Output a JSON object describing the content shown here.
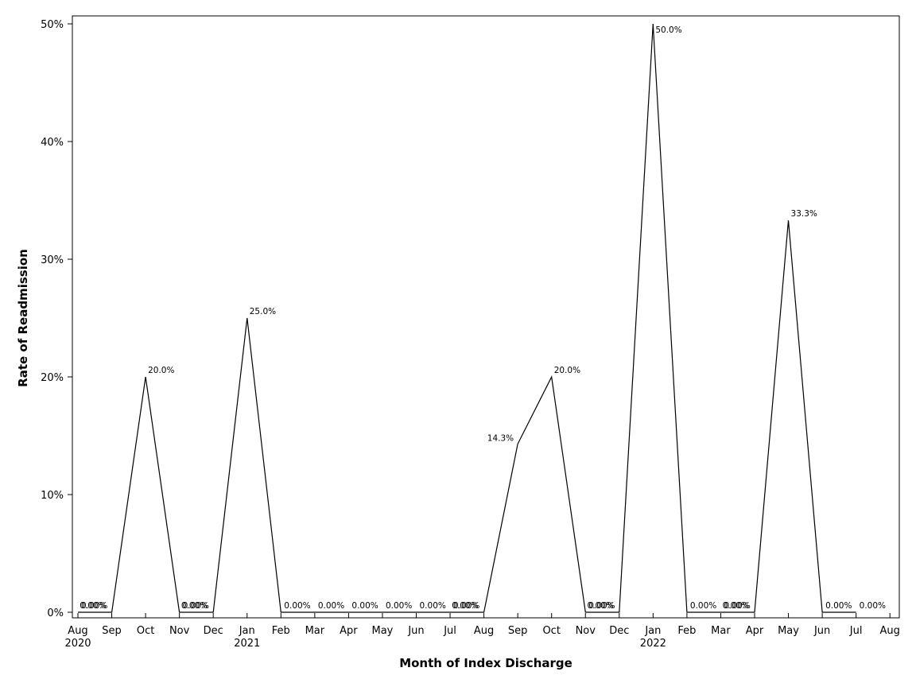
{
  "chart_data": {
    "type": "line",
    "title": "",
    "xlabel": "Month of Index Discharge",
    "ylabel": "Rate of Readmission",
    "ylim": [
      0,
      50
    ],
    "yticks": [
      {
        "value": 0,
        "label": "0%"
      },
      {
        "value": 10,
        "label": "10%"
      },
      {
        "value": 20,
        "label": "20%"
      },
      {
        "value": 30,
        "label": "30%"
      },
      {
        "value": 40,
        "label": "40%"
      },
      {
        "value": 50,
        "label": "50%"
      }
    ],
    "xticks": [
      {
        "month": "Aug",
        "year": "2020"
      },
      {
        "month": "Sep",
        "year": ""
      },
      {
        "month": "Oct",
        "year": ""
      },
      {
        "month": "Nov",
        "year": ""
      },
      {
        "month": "Dec",
        "year": ""
      },
      {
        "month": "Jan",
        "year": "2021"
      },
      {
        "month": "Feb",
        "year": ""
      },
      {
        "month": "Mar",
        "year": ""
      },
      {
        "month": "Apr",
        "year": ""
      },
      {
        "month": "May",
        "year": ""
      },
      {
        "month": "Jun",
        "year": ""
      },
      {
        "month": "Jul",
        "year": ""
      },
      {
        "month": "Aug",
        "year": ""
      },
      {
        "month": "Sep",
        "year": ""
      },
      {
        "month": "Oct",
        "year": ""
      },
      {
        "month": "Nov",
        "year": ""
      },
      {
        "month": "Dec",
        "year": ""
      },
      {
        "month": "Jan",
        "year": "2022"
      },
      {
        "month": "Feb",
        "year": ""
      },
      {
        "month": "Mar",
        "year": ""
      },
      {
        "month": "Apr",
        "year": ""
      },
      {
        "month": "May",
        "year": ""
      },
      {
        "month": "Jun",
        "year": ""
      },
      {
        "month": "Jul",
        "year": ""
      },
      {
        "month": "Aug",
        "year": ""
      }
    ],
    "grid": false,
    "line_color": "#000000",
    "series": [
      {
        "x": [
          "2020-08",
          "2020-09",
          "2020-10",
          "2020-11",
          "2020-12",
          "2021-01",
          "2021-02",
          "2021-03",
          "2021-04",
          "2021-05",
          "2021-06",
          "2021-07",
          "2021-08",
          "2021-09",
          "2021-10",
          "2021-11",
          "2021-12",
          "2022-01",
          "2022-02",
          "2022-03",
          "2022-04",
          "2022-05",
          "2022-06",
          "2022-07"
        ],
        "values": [
          0,
          0,
          20,
          0,
          0,
          25,
          0,
          0,
          0,
          0,
          0,
          0,
          0,
          14.3,
          20,
          0,
          0,
          50,
          0,
          0,
          0,
          33.3,
          0,
          0
        ],
        "labels": [
          "0.00%",
          "0.00%",
          "20.0%",
          "0.00%",
          "0.00%",
          "25.0%",
          "0.00%",
          "0.00%",
          "0.00%",
          "0.00%",
          "0.00%",
          "0.00%",
          "0.00%",
          "14.3%",
          "20.0%",
          "0.00%",
          "0.00%",
          "50.0%",
          "0.00%",
          "0.00%",
          "0.00%",
          "33.3%",
          "0.00%",
          "0.00%"
        ]
      }
    ]
  }
}
